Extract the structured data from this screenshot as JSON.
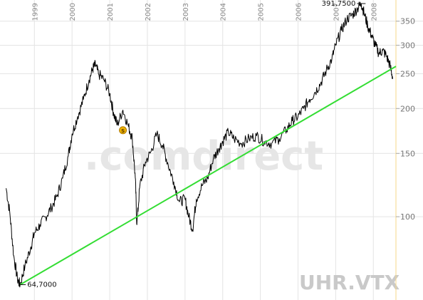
{
  "chart_data": {
    "type": "line",
    "symbol": "UHR.VTX",
    "watermark": ".comdirect",
    "y_scale": "log",
    "ylim": [
      60,
      390
    ],
    "xlim": [
      1998.2,
      2008.6
    ],
    "y_ticks": [
      100,
      150,
      200,
      250,
      300,
      350
    ],
    "x_year_labels": [
      "1999",
      "2000",
      "2001",
      "2002",
      "2003",
      "2004",
      "2005",
      "2006",
      "2007",
      "2008"
    ],
    "grid": true,
    "series": [
      {
        "points": [
          [
            1998.25,
            120
          ],
          [
            1998.35,
            102
          ],
          [
            1998.45,
            78
          ],
          [
            1998.55,
            67
          ],
          [
            1998.62,
            64.7
          ],
          [
            1998.75,
            73
          ],
          [
            1998.9,
            82
          ],
          [
            1999.0,
            90
          ],
          [
            1999.15,
            95
          ],
          [
            1999.3,
            100
          ],
          [
            1999.45,
            106
          ],
          [
            1999.6,
            114
          ],
          [
            1999.75,
            128
          ],
          [
            1999.9,
            148
          ],
          [
            2000.0,
            170
          ],
          [
            2000.15,
            190
          ],
          [
            2000.3,
            212
          ],
          [
            2000.45,
            240
          ],
          [
            2000.55,
            258
          ],
          [
            2000.62,
            265
          ],
          [
            2000.7,
            250
          ],
          [
            2000.85,
            240
          ],
          [
            2001.0,
            220
          ],
          [
            2001.1,
            195
          ],
          [
            2001.2,
            180
          ],
          [
            2001.35,
            198
          ],
          [
            2001.5,
            178
          ],
          [
            2001.6,
            165
          ],
          [
            2001.68,
            128
          ],
          [
            2001.72,
            95
          ],
          [
            2001.8,
            122
          ],
          [
            2001.95,
            142
          ],
          [
            2002.1,
            152
          ],
          [
            2002.25,
            170
          ],
          [
            2002.4,
            158
          ],
          [
            2002.55,
            140
          ],
          [
            2002.7,
            125
          ],
          [
            2002.85,
            110
          ],
          [
            2003.0,
            112
          ],
          [
            2003.1,
            100
          ],
          [
            2003.2,
            92
          ],
          [
            2003.3,
            112
          ],
          [
            2003.45,
            122
          ],
          [
            2003.6,
            128
          ],
          [
            2003.75,
            145
          ],
          [
            2003.9,
            155
          ],
          [
            2004.0,
            162
          ],
          [
            2004.15,
            172
          ],
          [
            2004.3,
            165
          ],
          [
            2004.5,
            160
          ],
          [
            2004.7,
            165
          ],
          [
            2004.9,
            168
          ],
          [
            2005.1,
            162
          ],
          [
            2005.3,
            160
          ],
          [
            2005.5,
            165
          ],
          [
            2005.7,
            175
          ],
          [
            2005.85,
            185
          ],
          [
            2006.0,
            190
          ],
          [
            2006.15,
            200
          ],
          [
            2006.3,
            212
          ],
          [
            2006.45,
            222
          ],
          [
            2006.6,
            235
          ],
          [
            2006.75,
            255
          ],
          [
            2006.9,
            275
          ],
          [
            2007.0,
            300
          ],
          [
            2007.15,
            330
          ],
          [
            2007.3,
            355
          ],
          [
            2007.45,
            365
          ],
          [
            2007.58,
            380
          ],
          [
            2007.68,
            391.75
          ],
          [
            2007.75,
            370
          ],
          [
            2007.85,
            340
          ],
          [
            2007.95,
            320
          ],
          [
            2008.05,
            300
          ],
          [
            2008.15,
            285
          ],
          [
            2008.25,
            290
          ],
          [
            2008.35,
            280
          ],
          [
            2008.45,
            262
          ],
          [
            2008.52,
            242
          ]
        ],
        "color": "#000000"
      }
    ],
    "trendline": {
      "from": [
        1998.62,
        64.7
      ],
      "to": [
        2008.6,
        262
      ],
      "color": "#33dd33"
    },
    "annotations": [
      {
        "label": "391,7500",
        "x": 2007.68,
        "y": 391.75,
        "kind": "high"
      },
      {
        "label": "64,7000",
        "x": 1998.62,
        "y": 64.7,
        "kind": "low"
      }
    ],
    "marker": {
      "label": "S",
      "x": 2001.35,
      "y": 174,
      "color": "#f0b400"
    },
    "current_line_color": "#f5d78a"
  }
}
